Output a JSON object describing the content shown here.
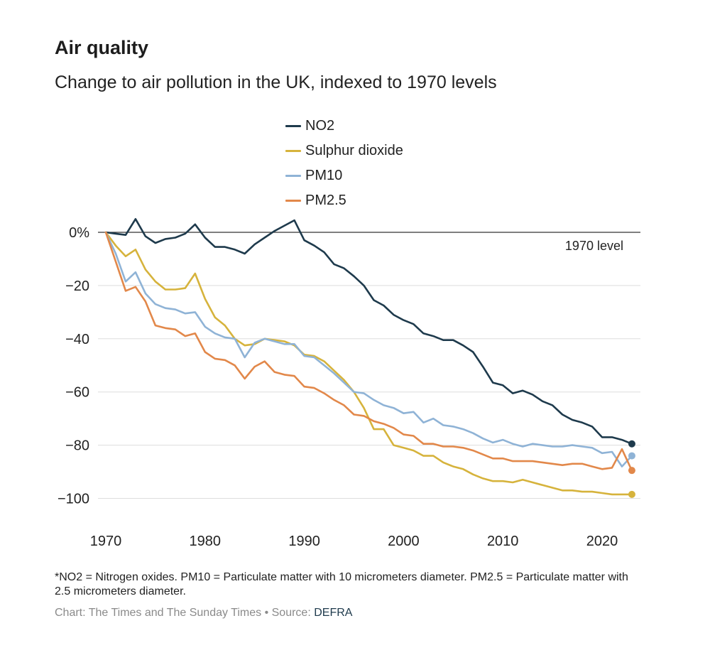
{
  "header": {
    "title": "Air quality",
    "subtitle": "Change to air pollution in the UK, indexed to 1970 levels"
  },
  "legend": [
    {
      "label": "NO2",
      "color": "#1e3a4c"
    },
    {
      "label": "Sulphur dioxide",
      "color": "#d6b33c"
    },
    {
      "label": "PM10",
      "color": "#8fb3d6"
    },
    {
      "label": "PM2.5",
      "color": "#e2884a"
    }
  ],
  "chart_data": {
    "type": "line",
    "title": "Air quality",
    "subtitle": "Change to air pollution in the UK, indexed to 1970 levels",
    "xlabel": "",
    "ylabel": "",
    "xlim": [
      1970,
      2023
    ],
    "ylim": [
      -100,
      0
    ],
    "x_ticks": [
      1970,
      1980,
      1990,
      2000,
      2010,
      2020
    ],
    "x_tick_labels": [
      "1970",
      "1980",
      "1990",
      "2000",
      "2010",
      "2020"
    ],
    "y_ticks": [
      0,
      -20,
      -40,
      -60,
      -80,
      -100
    ],
    "y_tick_labels": [
      "0%",
      "−20",
      "−40",
      "−60",
      "−80",
      "−100"
    ],
    "reference_line": {
      "value": 0,
      "label": "1970 level"
    },
    "x": [
      1970,
      1971,
      1972,
      1973,
      1974,
      1975,
      1976,
      1977,
      1978,
      1979,
      1980,
      1981,
      1982,
      1983,
      1984,
      1985,
      1986,
      1987,
      1988,
      1989,
      1990,
      1991,
      1992,
      1993,
      1994,
      1995,
      1996,
      1997,
      1998,
      1999,
      2000,
      2001,
      2002,
      2003,
      2004,
      2005,
      2006,
      2007,
      2008,
      2009,
      2010,
      2011,
      2012,
      2013,
      2014,
      2015,
      2016,
      2017,
      2018,
      2019,
      2020,
      2021,
      2022,
      2023
    ],
    "series": [
      {
        "name": "NO2",
        "color": "#1e3a4c",
        "values": [
          0,
          -0.5,
          -1,
          5,
          -1.5,
          -4,
          -2.5,
          -2,
          -0.5,
          3,
          -2,
          -5.5,
          -5.5,
          -6.5,
          -8,
          -4.5,
          -2,
          0.5,
          2.5,
          4.5,
          -3,
          -5,
          -7.5,
          -12,
          -13.5,
          -16.5,
          -20,
          -25.5,
          -27.5,
          -31,
          -33,
          -34.5,
          -38,
          -39,
          -40.5,
          -40.5,
          -42.5,
          -45,
          -50.5,
          -56.5,
          -57.5,
          -60.5,
          -59.5,
          -61,
          -63.5,
          -65,
          -68.5,
          -70.5,
          -71.5,
          -73,
          -77,
          -77,
          -78,
          -79.5
        ]
      },
      {
        "name": "Sulphur dioxide",
        "color": "#d6b33c",
        "values": [
          0,
          -5,
          -9,
          -6.5,
          -14,
          -18.5,
          -21.5,
          -21.5,
          -21,
          -15.5,
          -25,
          -32,
          -35,
          -40,
          -42.5,
          -42,
          -40,
          -40.5,
          -41,
          -42.5,
          -46,
          -46.5,
          -48.5,
          -52,
          -55.5,
          -60,
          -66,
          -74,
          -74,
          -80,
          -81,
          -82,
          -84,
          -84,
          -86.5,
          -88,
          -89,
          -91,
          -92.5,
          -93.5,
          -93.5,
          -94,
          -93,
          -94,
          -95,
          -96,
          -97,
          -97,
          -97.5,
          -97.5,
          -98,
          -98.5,
          -98.5,
          -98.5
        ]
      },
      {
        "name": "PM10",
        "color": "#8fb3d6",
        "values": [
          0,
          -8,
          -18.5,
          -15,
          -23,
          -27,
          -28.5,
          -29,
          -30.5,
          -30,
          -35.5,
          -38,
          -39.5,
          -40,
          -47,
          -41.5,
          -40,
          -41,
          -42,
          -42,
          -46.5,
          -47,
          -50,
          -53,
          -56.5,
          -60,
          -60.5,
          -63,
          -65,
          -66,
          -68,
          -67.5,
          -71.5,
          -70,
          -72.5,
          -73,
          -74,
          -75.5,
          -77.5,
          -79,
          -78,
          -79.5,
          -80.5,
          -79.5,
          -80,
          -80.5,
          -80.5,
          -80,
          -80.5,
          -81,
          -83,
          -82.5,
          -88,
          -84
        ]
      },
      {
        "name": "PM2.5",
        "color": "#e2884a",
        "values": [
          0,
          -11,
          -22,
          -20.5,
          -26,
          -35,
          -36,
          -36.5,
          -39,
          -38,
          -45,
          -47.5,
          -48,
          -50,
          -55,
          -50.5,
          -48.5,
          -52.5,
          -53.5,
          -54,
          -58,
          -58.5,
          -60.5,
          -63,
          -65,
          -68.5,
          -69,
          -71,
          -72,
          -73.5,
          -76,
          -76.5,
          -79.5,
          -79.5,
          -80.5,
          -80.5,
          -81,
          -82,
          -83.5,
          -85,
          -85,
          -86,
          -86,
          -86,
          -86.5,
          -87,
          -87.5,
          -87,
          -87,
          -88,
          -89,
          -88.5,
          -81.5,
          -89.5
        ]
      }
    ]
  },
  "footnote": "*NO2 = Nitrogen oxides. PM10 = Particulate matter with 10 micrometers diameter. PM2.5 = Particulate matter with 2.5 micrometers diameter.",
  "credit": {
    "chart": "Chart: The Times and The Sunday Times",
    "separator": "•",
    "source_label": "Source:",
    "source": "DEFRA"
  }
}
